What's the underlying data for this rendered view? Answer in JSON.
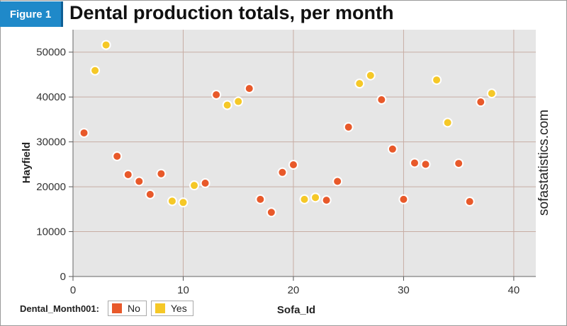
{
  "badge": "Figure 1",
  "title": "Dental production totals, per month",
  "watermark": "sofastatistics.com",
  "legend": {
    "label": "Dental_Month001:",
    "items": [
      {
        "name": "No",
        "color": "#e8592a"
      },
      {
        "name": "Yes",
        "color": "#f5c827"
      }
    ]
  },
  "chart_data": {
    "type": "scatter",
    "xlabel": "Sofa_Id",
    "ylabel": "Hayfield",
    "xlim": [
      0,
      42
    ],
    "ylim": [
      0,
      55000
    ],
    "xticks": [
      0,
      10,
      20,
      30,
      40
    ],
    "yticks": [
      0,
      10000,
      20000,
      30000,
      40000,
      50000
    ],
    "grid": true,
    "legend_position": "bottom-left",
    "series": [
      {
        "name": "No",
        "color": "#e8592a",
        "points": [
          [
            1,
            32000
          ],
          [
            4,
            26800
          ],
          [
            5,
            22700
          ],
          [
            6,
            21200
          ],
          [
            7,
            18300
          ],
          [
            8,
            22900
          ],
          [
            12,
            20800
          ],
          [
            13,
            40500
          ],
          [
            16,
            41900
          ],
          [
            17,
            17200
          ],
          [
            18,
            14300
          ],
          [
            19,
            23200
          ],
          [
            20,
            24900
          ],
          [
            23,
            17000
          ],
          [
            24,
            21200
          ],
          [
            25,
            33300
          ],
          [
            28,
            39400
          ],
          [
            29,
            28400
          ],
          [
            30,
            17200
          ],
          [
            31,
            25300
          ],
          [
            32,
            25000
          ],
          [
            35,
            25200
          ],
          [
            36,
            16700
          ],
          [
            37,
            38900
          ]
        ]
      },
      {
        "name": "Yes",
        "color": "#f5c827",
        "points": [
          [
            2,
            45900
          ],
          [
            3,
            51600
          ],
          [
            9,
            16800
          ],
          [
            10,
            16500
          ],
          [
            11,
            20300
          ],
          [
            14,
            38200
          ],
          [
            15,
            39000
          ],
          [
            21,
            17200
          ],
          [
            22,
            17600
          ],
          [
            26,
            43000
          ],
          [
            27,
            44800
          ],
          [
            33,
            43800
          ],
          [
            34,
            34300
          ],
          [
            38,
            40800
          ]
        ]
      }
    ]
  }
}
